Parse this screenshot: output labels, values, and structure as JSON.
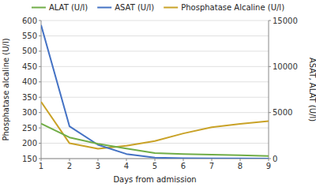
{
  "chart_data": {
    "type": "line",
    "xlabel": "Days from admission",
    "ylabel": "Phosphatase alcaline (U/l)",
    "y2label": "ASAT, ALAT (U/l)",
    "x": [
      1,
      2,
      3,
      4,
      5,
      6,
      7,
      8,
      9
    ],
    "series": [
      {
        "name": "ALAT (U/l)",
        "color": "#70ad47",
        "axis": "y2",
        "values": [
          3800,
          2300,
          1600,
          1100,
          600,
          500,
          420,
          360,
          280
        ]
      },
      {
        "name": "ASAT (U/l)",
        "color": "#4472c4",
        "axis": "y2",
        "values": [
          14500,
          3500,
          1500,
          500,
          100,
          50,
          30,
          20,
          10
        ]
      },
      {
        "name": "Phosphatase Alcaline (U/l)",
        "color": "#c9a227",
        "values": [
          335,
          200,
          182,
          192,
          207,
          232,
          252,
          263,
          272
        ]
      }
    ],
    "xlim": [
      1,
      9
    ],
    "xticks": [
      1,
      2,
      3,
      4,
      5,
      6,
      7,
      8,
      9
    ],
    "ylim": [
      150,
      600
    ],
    "yticks": [
      150,
      200,
      250,
      300,
      350,
      400,
      450,
      500,
      550,
      600
    ],
    "y2lim": [
      0,
      15000
    ],
    "y2ticks": [
      0,
      5000,
      10000,
      15000
    ],
    "grid": true,
    "legend": "top"
  }
}
